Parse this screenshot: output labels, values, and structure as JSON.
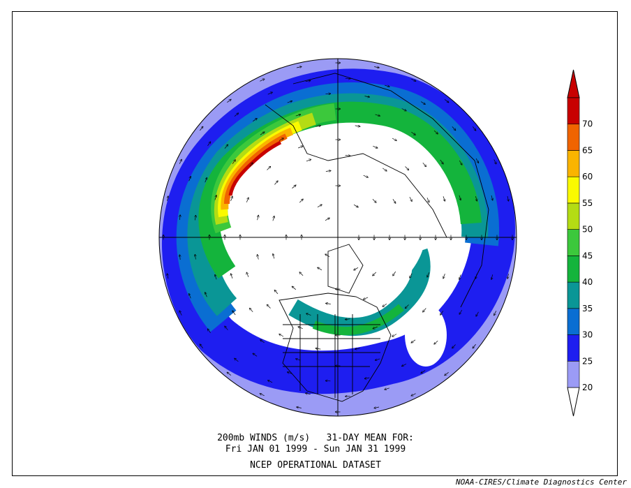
{
  "title": {
    "line1": "200mb WINDS (m/s)   31-DAY MEAN FOR:",
    "line2": "Fri JAN 01 1999 - Sun JAN 31 1999",
    "line3": "NCEP OPERATIONAL DATASET"
  },
  "credit": "NOAA-CIRES/Climate Diagnostics Center",
  "colorbar": {
    "levels": [
      {
        "label": "20",
        "color": "#9b9bf5"
      },
      {
        "label": "25",
        "color": "#1e1ef0"
      },
      {
        "label": "30",
        "color": "#0a6ed2"
      },
      {
        "label": "35",
        "color": "#0a9696"
      },
      {
        "label": "40",
        "color": "#14b43c"
      },
      {
        "label": "45",
        "color": "#3cc83c"
      },
      {
        "label": "50",
        "color": "#b4dc14"
      },
      {
        "label": "55",
        "color": "#fafa00"
      },
      {
        "label": "60",
        "color": "#fab400"
      },
      {
        "label": "65",
        "color": "#f06400"
      },
      {
        "label": "70",
        "color": "#c80000"
      }
    ],
    "low_color": "#ffffff",
    "high_color": "#c80000"
  }
}
